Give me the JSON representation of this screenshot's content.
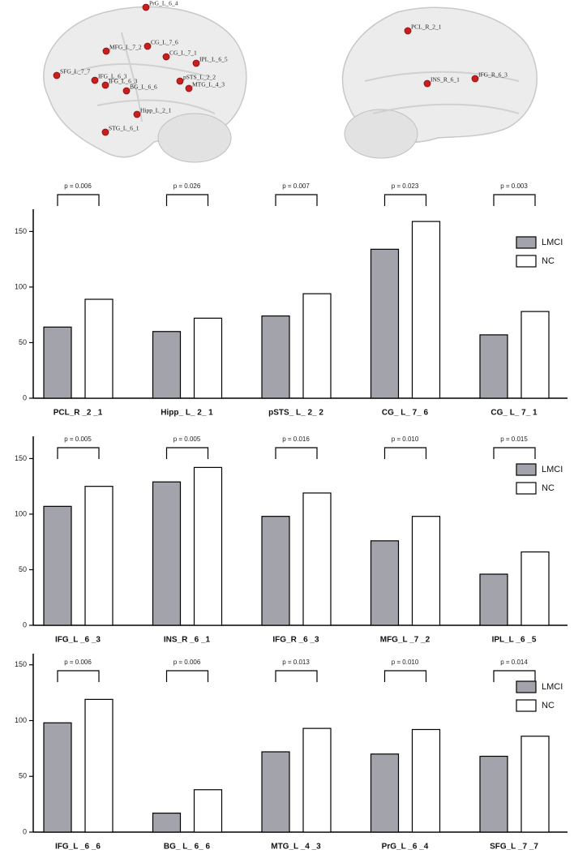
{
  "brain_labels": {
    "left": [
      "PrG_L_6_4",
      "MFG_L_7_2",
      "CG_L_7_6",
      "CG_L_7_1",
      "IPL_L_6_5",
      "SFG_L_7_7",
      "IFG_L_6_3",
      "IFG_L_6_3",
      "pSTS_L_2_2",
      "MTG_L_4_3",
      "BG_L_6_6",
      "Hipp_L_2_1",
      "STG_L_6_1"
    ],
    "right": [
      "PCL_R_2_1",
      "INS_R_6_1",
      "IFG_R_6_3"
    ]
  },
  "chart_data": [
    {
      "type": "bar",
      "categories": [
        "PCL_R _2 _1",
        "Hipp_ L_ 2_ 1",
        "pSTS_ L_ 2_ 2",
        "CG_ L_ 7_ 6",
        "CG_ L_ 7_ 1"
      ],
      "series": [
        {
          "name": "LMCI",
          "color": "#a3a3ab",
          "values": [
            64,
            60,
            74,
            134,
            57
          ]
        },
        {
          "name": "NC",
          "color": "#ffffff",
          "values": [
            89,
            72,
            94,
            159,
            78
          ]
        }
      ],
      "annotations": [
        "p = 0.006",
        "p = 0.026",
        "p = 0.007",
        "p = 0.023",
        "p = 0.003"
      ],
      "ylim": [
        0,
        170
      ],
      "yticks": [
        0,
        50,
        100,
        150
      ],
      "legend": "upper right"
    },
    {
      "type": "bar",
      "categories": [
        "IFG_L _6 _3",
        "INS_R _6 _1",
        "IFG_R _6 _3",
        "MFG_L _7 _2",
        "IPL_L _6 _5"
      ],
      "series": [
        {
          "name": "LMCI",
          "color": "#a3a3ab",
          "values": [
            107,
            129,
            98,
            76,
            46
          ]
        },
        {
          "name": "NC",
          "color": "#ffffff",
          "values": [
            125,
            142,
            119,
            98,
            66
          ]
        }
      ],
      "annotations": [
        "p = 0.005",
        "p = 0.005",
        "p = 0.016",
        "p = 0.010",
        "p = 0.015"
      ],
      "ylim": [
        0,
        170
      ],
      "yticks": [
        0,
        50,
        100,
        150
      ],
      "legend": "upper right"
    },
    {
      "type": "bar",
      "categories": [
        "IFG_L _6 _6",
        "BG_ L_ 6_ 6",
        "MTG_L _4 _3",
        "PrG_L _6 _4",
        "SFG_L _7 _7"
      ],
      "series": [
        {
          "name": "LMCI",
          "color": "#a3a3ab",
          "values": [
            98,
            17,
            72,
            70,
            68
          ]
        },
        {
          "name": "NC",
          "color": "#ffffff",
          "values": [
            119,
            38,
            93,
            92,
            86
          ]
        }
      ],
      "annotations": [
        "p = 0.006",
        "p = 0.006",
        "p = 0.013",
        "p = 0.010",
        "p = 0.014"
      ],
      "ylim": [
        0,
        160
      ],
      "yticks": [
        0,
        50,
        100,
        150
      ],
      "legend": "upper right"
    }
  ]
}
